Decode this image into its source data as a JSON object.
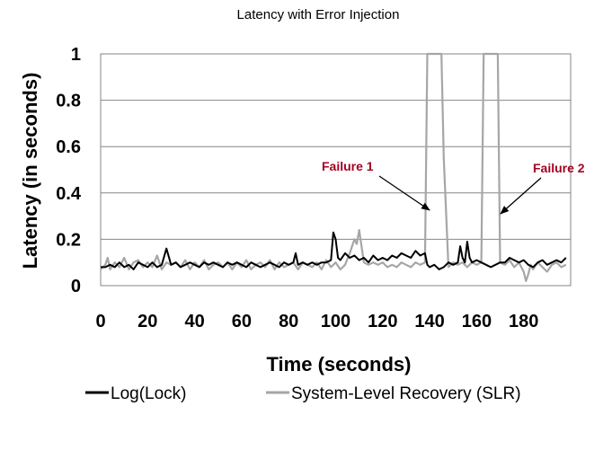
{
  "chart_data": {
    "type": "line",
    "title": "Latency with Error Injection",
    "xlabel": "Time (seconds)",
    "ylabel": "Latency (in seconds)",
    "xlim": [
      0,
      200
    ],
    "ylim": [
      0,
      1
    ],
    "xticks": [
      0,
      20,
      40,
      60,
      80,
      100,
      120,
      140,
      160,
      180
    ],
    "yticks": [
      0,
      0.2,
      0.4,
      0.6,
      0.8,
      1
    ],
    "ytick_labels": [
      "0",
      "0.2",
      "0.4",
      "0.6",
      "0.8",
      "1"
    ],
    "grid": "horizontal",
    "legend": "bottom",
    "series": [
      {
        "name": "Log(Lock)",
        "color": "#000000",
        "x": [
          0,
          2,
          4,
          6,
          8,
          10,
          12,
          14,
          16,
          18,
          20,
          22,
          24,
          26,
          28,
          30,
          32,
          34,
          36,
          38,
          40,
          42,
          44,
          46,
          48,
          50,
          52,
          54,
          56,
          58,
          60,
          62,
          64,
          66,
          68,
          70,
          72,
          74,
          76,
          78,
          80,
          82,
          83,
          84,
          86,
          88,
          90,
          92,
          94,
          96,
          98,
          99,
          100,
          101,
          102,
          104,
          106,
          108,
          110,
          112,
          114,
          116,
          118,
          120,
          122,
          124,
          126,
          128,
          130,
          132,
          134,
          136,
          138,
          139,
          140,
          142,
          144,
          146,
          148,
          150,
          152,
          153,
          154,
          155,
          156,
          157,
          158,
          160,
          162,
          164,
          166,
          168,
          170,
          172,
          174,
          176,
          178,
          180,
          182,
          184,
          186,
          188,
          190,
          192,
          194,
          196,
          198
        ],
        "y": [
          0.08,
          0.08,
          0.09,
          0.08,
          0.1,
          0.08,
          0.09,
          0.07,
          0.1,
          0.09,
          0.08,
          0.1,
          0.08,
          0.09,
          0.16,
          0.09,
          0.1,
          0.08,
          0.09,
          0.1,
          0.09,
          0.08,
          0.1,
          0.09,
          0.1,
          0.09,
          0.08,
          0.1,
          0.09,
          0.1,
          0.09,
          0.08,
          0.1,
          0.09,
          0.08,
          0.09,
          0.1,
          0.09,
          0.08,
          0.1,
          0.09,
          0.1,
          0.14,
          0.09,
          0.1,
          0.09,
          0.1,
          0.09,
          0.1,
          0.1,
          0.11,
          0.23,
          0.2,
          0.12,
          0.11,
          0.14,
          0.12,
          0.13,
          0.11,
          0.12,
          0.1,
          0.13,
          0.11,
          0.12,
          0.11,
          0.13,
          0.12,
          0.14,
          0.13,
          0.12,
          0.15,
          0.13,
          0.14,
          0.09,
          0.08,
          0.09,
          0.07,
          0.08,
          0.1,
          0.09,
          0.1,
          0.17,
          0.12,
          0.1,
          0.19,
          0.12,
          0.1,
          0.11,
          0.1,
          0.09,
          0.08,
          0.09,
          0.1,
          0.1,
          0.12,
          0.11,
          0.1,
          0.11,
          0.09,
          0.08,
          0.1,
          0.11,
          0.09,
          0.1,
          0.11,
          0.1,
          0.12
        ]
      },
      {
        "name": "System-Level Recovery (SLR)",
        "color": "#a6a6a6",
        "x": [
          0,
          2,
          3,
          4,
          6,
          8,
          10,
          12,
          14,
          16,
          18,
          20,
          22,
          24,
          26,
          28,
          30,
          32,
          34,
          36,
          38,
          40,
          42,
          44,
          46,
          48,
          50,
          52,
          54,
          56,
          58,
          60,
          62,
          64,
          66,
          68,
          70,
          72,
          74,
          76,
          78,
          80,
          82,
          84,
          86,
          88,
          90,
          92,
          94,
          96,
          98,
          100,
          102,
          104,
          106,
          108,
          109,
          110,
          112,
          114,
          116,
          118,
          120,
          122,
          124,
          126,
          128,
          130,
          132,
          134,
          136,
          138,
          139,
          140,
          141,
          142,
          143,
          144,
          145,
          146,
          148,
          150,
          152,
          154,
          156,
          158,
          160,
          162,
          163,
          164,
          165,
          166,
          167,
          168,
          169,
          170,
          172,
          174,
          176,
          178,
          180,
          181,
          182,
          183,
          184,
          186,
          188,
          190,
          192,
          194,
          196,
          198
        ],
        "y": [
          0.07,
          0.09,
          0.12,
          0.07,
          0.1,
          0.08,
          0.12,
          0.07,
          0.1,
          0.11,
          0.08,
          0.1,
          0.08,
          0.13,
          0.07,
          0.1,
          0.09,
          0.1,
          0.08,
          0.11,
          0.07,
          0.1,
          0.08,
          0.11,
          0.07,
          0.09,
          0.1,
          0.08,
          0.1,
          0.07,
          0.1,
          0.08,
          0.11,
          0.07,
          0.09,
          0.1,
          0.08,
          0.11,
          0.07,
          0.1,
          0.08,
          0.09,
          0.1,
          0.07,
          0.1,
          0.09,
          0.08,
          0.1,
          0.07,
          0.11,
          0.08,
          0.1,
          0.07,
          0.09,
          0.14,
          0.2,
          0.18,
          0.24,
          0.1,
          0.09,
          0.1,
          0.09,
          0.1,
          0.08,
          0.09,
          0.08,
          0.1,
          0.09,
          0.08,
          0.1,
          0.09,
          0.1,
          1.0,
          1.0,
          1.0,
          1.0,
          1.0,
          1.0,
          1.0,
          0.55,
          0.08,
          0.1,
          0.09,
          0.1,
          0.08,
          0.1,
          0.09,
          0.1,
          1.0,
          1.0,
          1.0,
          1.0,
          1.0,
          1.0,
          1.0,
          0.1,
          0.09,
          0.11,
          0.08,
          0.1,
          0.06,
          0.02,
          0.05,
          0.09,
          0.07,
          0.1,
          0.08,
          0.06,
          0.09,
          0.1,
          0.08,
          0.09
        ]
      }
    ],
    "annotations": [
      {
        "text": "Failure 1",
        "target_x": 140,
        "target_y": 0.33
      },
      {
        "text": "Failure 2",
        "target_x": 170,
        "target_y": 0.3
      }
    ]
  }
}
